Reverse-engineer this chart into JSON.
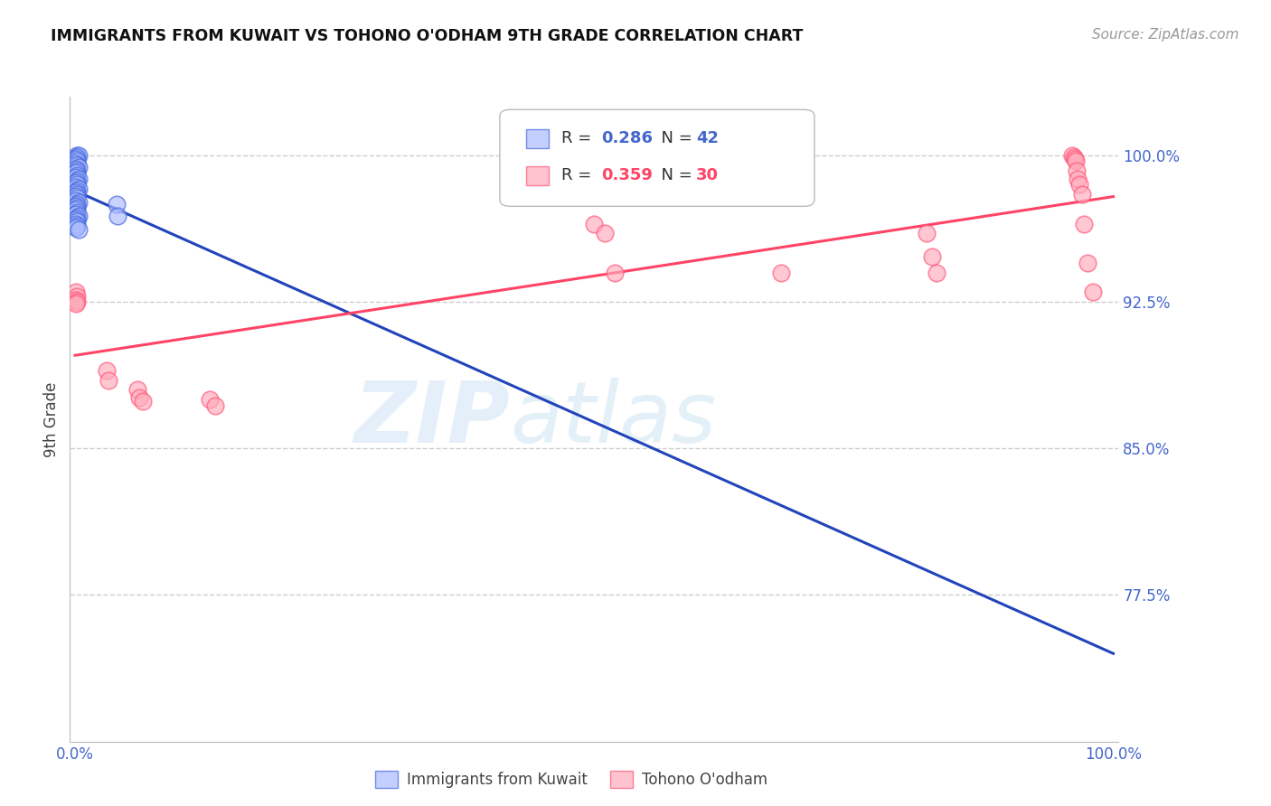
{
  "title": "IMMIGRANTS FROM KUWAIT VS TOHONO O'ODHAM 9TH GRADE CORRELATION CHART",
  "source": "Source: ZipAtlas.com",
  "ylabel": "9th Grade",
  "blue_R": 0.286,
  "blue_N": 42,
  "pink_R": 0.359,
  "pink_N": 30,
  "blue_color": "#aabbff",
  "pink_color": "#ffaabb",
  "blue_edge_color": "#4466dd",
  "pink_edge_color": "#ff5577",
  "blue_line_color": "#2244bb",
  "pink_line_color": "#ff4466",
  "legend_label_blue": "Immigrants from Kuwait",
  "legend_label_pink": "Tohono O'odham",
  "blue_scatter_x": [
    0.002,
    0.003,
    0.002,
    0.001,
    0.002,
    0.001,
    0.002,
    0.003,
    0.001,
    0.002,
    0.001,
    0.002,
    0.001,
    0.003,
    0.002,
    0.001,
    0.002,
    0.001,
    0.003,
    0.002,
    0.001,
    0.002,
    0.001,
    0.002,
    0.001,
    0.003,
    0.002,
    0.001,
    0.002,
    0.001,
    0.002,
    0.001,
    0.003,
    0.002,
    0.001,
    0.002,
    0.001,
    0.002,
    0.001,
    0.003,
    0.04,
    0.041
  ],
  "blue_scatter_y": [
    1.0,
    1.0,
    0.999,
    0.998,
    0.997,
    0.996,
    0.995,
    0.994,
    0.993,
    0.992,
    0.991,
    0.99,
    0.989,
    0.988,
    0.987,
    0.986,
    0.985,
    0.984,
    0.983,
    0.982,
    0.981,
    0.98,
    0.979,
    0.978,
    0.977,
    0.976,
    0.975,
    0.974,
    0.973,
    0.972,
    0.971,
    0.97,
    0.969,
    0.968,
    0.967,
    0.966,
    0.965,
    0.964,
    0.963,
    0.962,
    0.975,
    0.969
  ],
  "pink_scatter_x": [
    0.001,
    0.002,
    0.001,
    0.002,
    0.001,
    0.03,
    0.032,
    0.06,
    0.062,
    0.065,
    0.13,
    0.135,
    0.5,
    0.51,
    0.52,
    0.68,
    0.82,
    0.825,
    0.83,
    0.96,
    0.962,
    0.963,
    0.964,
    0.965,
    0.966,
    0.967,
    0.97,
    0.972,
    0.975,
    0.98
  ],
  "pink_scatter_y": [
    0.93,
    0.928,
    0.926,
    0.925,
    0.924,
    0.89,
    0.885,
    0.88,
    0.876,
    0.874,
    0.875,
    0.872,
    0.965,
    0.96,
    0.94,
    0.94,
    0.96,
    0.948,
    0.94,
    1.0,
    0.999,
    0.998,
    0.997,
    0.992,
    0.988,
    0.985,
    0.98,
    0.965,
    0.945,
    0.93
  ],
  "watermark_zip": "ZIP",
  "watermark_atlas": "atlas",
  "background_color": "#ffffff",
  "grid_color": "#cccccc",
  "title_color": "#111111",
  "axis_label_color": "#4466cc",
  "source_color": "#999999",
  "ymin": 0.7,
  "ymax": 1.03,
  "xmin": -0.005,
  "xmax": 1.005
}
